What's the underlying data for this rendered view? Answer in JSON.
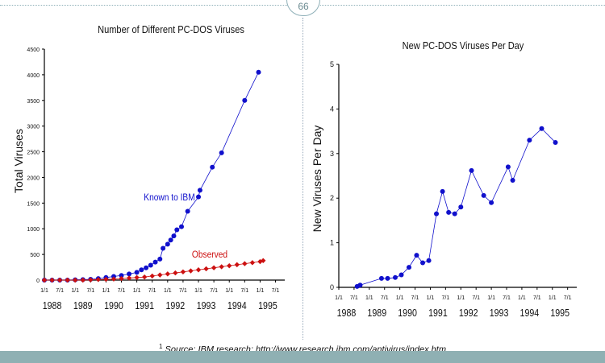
{
  "page_number": "66",
  "footnote": {
    "marker": "1",
    "text": "Source: IBM research: http://www.research.ibm.com/antivirus/index.htm"
  },
  "chart_data": [
    {
      "type": "scatter",
      "title": "Number of Different PC-DOS Viruses",
      "ylabel": "Total Viruses",
      "xlabel": "",
      "xlim": [
        1988.0,
        1995.8
      ],
      "ylim": [
        0,
        4500
      ],
      "yticks": [
        0,
        500,
        1000,
        1500,
        2000,
        2500,
        3000,
        3500,
        4000,
        4500
      ],
      "year_labels": [
        "1988",
        "1989",
        "1990",
        "1991",
        "1992",
        "1993",
        "1994",
        "1995"
      ],
      "sub_tick_labels": [
        "1/1",
        "7/1"
      ],
      "series": [
        {
          "name": "Known to IBM",
          "color": "#1010cc",
          "marker": "circle",
          "x": [
            1988.0,
            1988.25,
            1988.5,
            1988.75,
            1989.0,
            1989.25,
            1989.5,
            1989.75,
            1990.0,
            1990.25,
            1990.5,
            1990.75,
            1991.0,
            1991.15,
            1991.3,
            1991.45,
            1991.6,
            1991.75,
            1991.85,
            1992.0,
            1992.1,
            1992.2,
            1992.3,
            1992.45,
            1992.65,
            1993.0,
            1993.05,
            1993.45,
            1993.75,
            1994.5,
            1994.95
          ],
          "y": [
            0,
            0,
            0,
            0,
            5,
            10,
            15,
            30,
            50,
            70,
            90,
            120,
            150,
            200,
            240,
            290,
            350,
            410,
            620,
            700,
            780,
            860,
            980,
            1040,
            1340,
            1620,
            1750,
            2200,
            2480,
            3500,
            4050
          ]
        },
        {
          "name": "Observed",
          "color": "#cc1010",
          "marker": "diamond",
          "x": [
            1988.0,
            1988.25,
            1988.5,
            1988.75,
            1989.0,
            1989.25,
            1989.5,
            1989.75,
            1990.0,
            1990.25,
            1990.5,
            1990.75,
            1991.0,
            1991.25,
            1991.5,
            1991.75,
            1992.0,
            1992.25,
            1992.5,
            1992.75,
            1993.0,
            1993.25,
            1993.5,
            1993.75,
            1994.0,
            1994.25,
            1994.5,
            1994.75,
            1995.0,
            1995.1
          ],
          "y": [
            0,
            0,
            0,
            0,
            0,
            0,
            5,
            10,
            15,
            20,
            30,
            40,
            50,
            60,
            80,
            100,
            120,
            140,
            160,
            180,
            200,
            220,
            240,
            260,
            280,
            300,
            320,
            340,
            360,
            380
          ]
        }
      ]
    },
    {
      "type": "line",
      "title": "New PC-DOS Viruses Per Day",
      "ylabel": "New Viruses Per Day",
      "xlabel": "",
      "xlim": [
        1988.0,
        1995.8
      ],
      "ylim": [
        0,
        5
      ],
      "yticks": [
        0,
        1,
        2,
        3,
        4,
        5
      ],
      "year_labels": [
        "1988",
        "1989",
        "1990",
        "1991",
        "1992",
        "1993",
        "1994",
        "1995"
      ],
      "sub_tick_labels": [
        "1/1",
        "7/1"
      ],
      "series": [
        {
          "name": "",
          "color": "#1010cc",
          "marker": "circle",
          "x": [
            1988.6,
            1988.7,
            1989.4,
            1989.6,
            1989.85,
            1990.05,
            1990.3,
            1990.55,
            1990.75,
            1990.95,
            1991.2,
            1991.4,
            1991.6,
            1991.8,
            1992.0,
            1992.35,
            1992.75,
            1993.0,
            1993.55,
            1993.7,
            1994.25,
            1994.65,
            1995.1
          ],
          "y": [
            0.02,
            0.05,
            0.2,
            0.2,
            0.22,
            0.28,
            0.45,
            0.72,
            0.55,
            0.6,
            1.65,
            2.15,
            1.68,
            1.65,
            1.8,
            2.62,
            2.06,
            1.9,
            2.7,
            2.4,
            3.3,
            3.56,
            3.25
          ]
        }
      ]
    }
  ]
}
